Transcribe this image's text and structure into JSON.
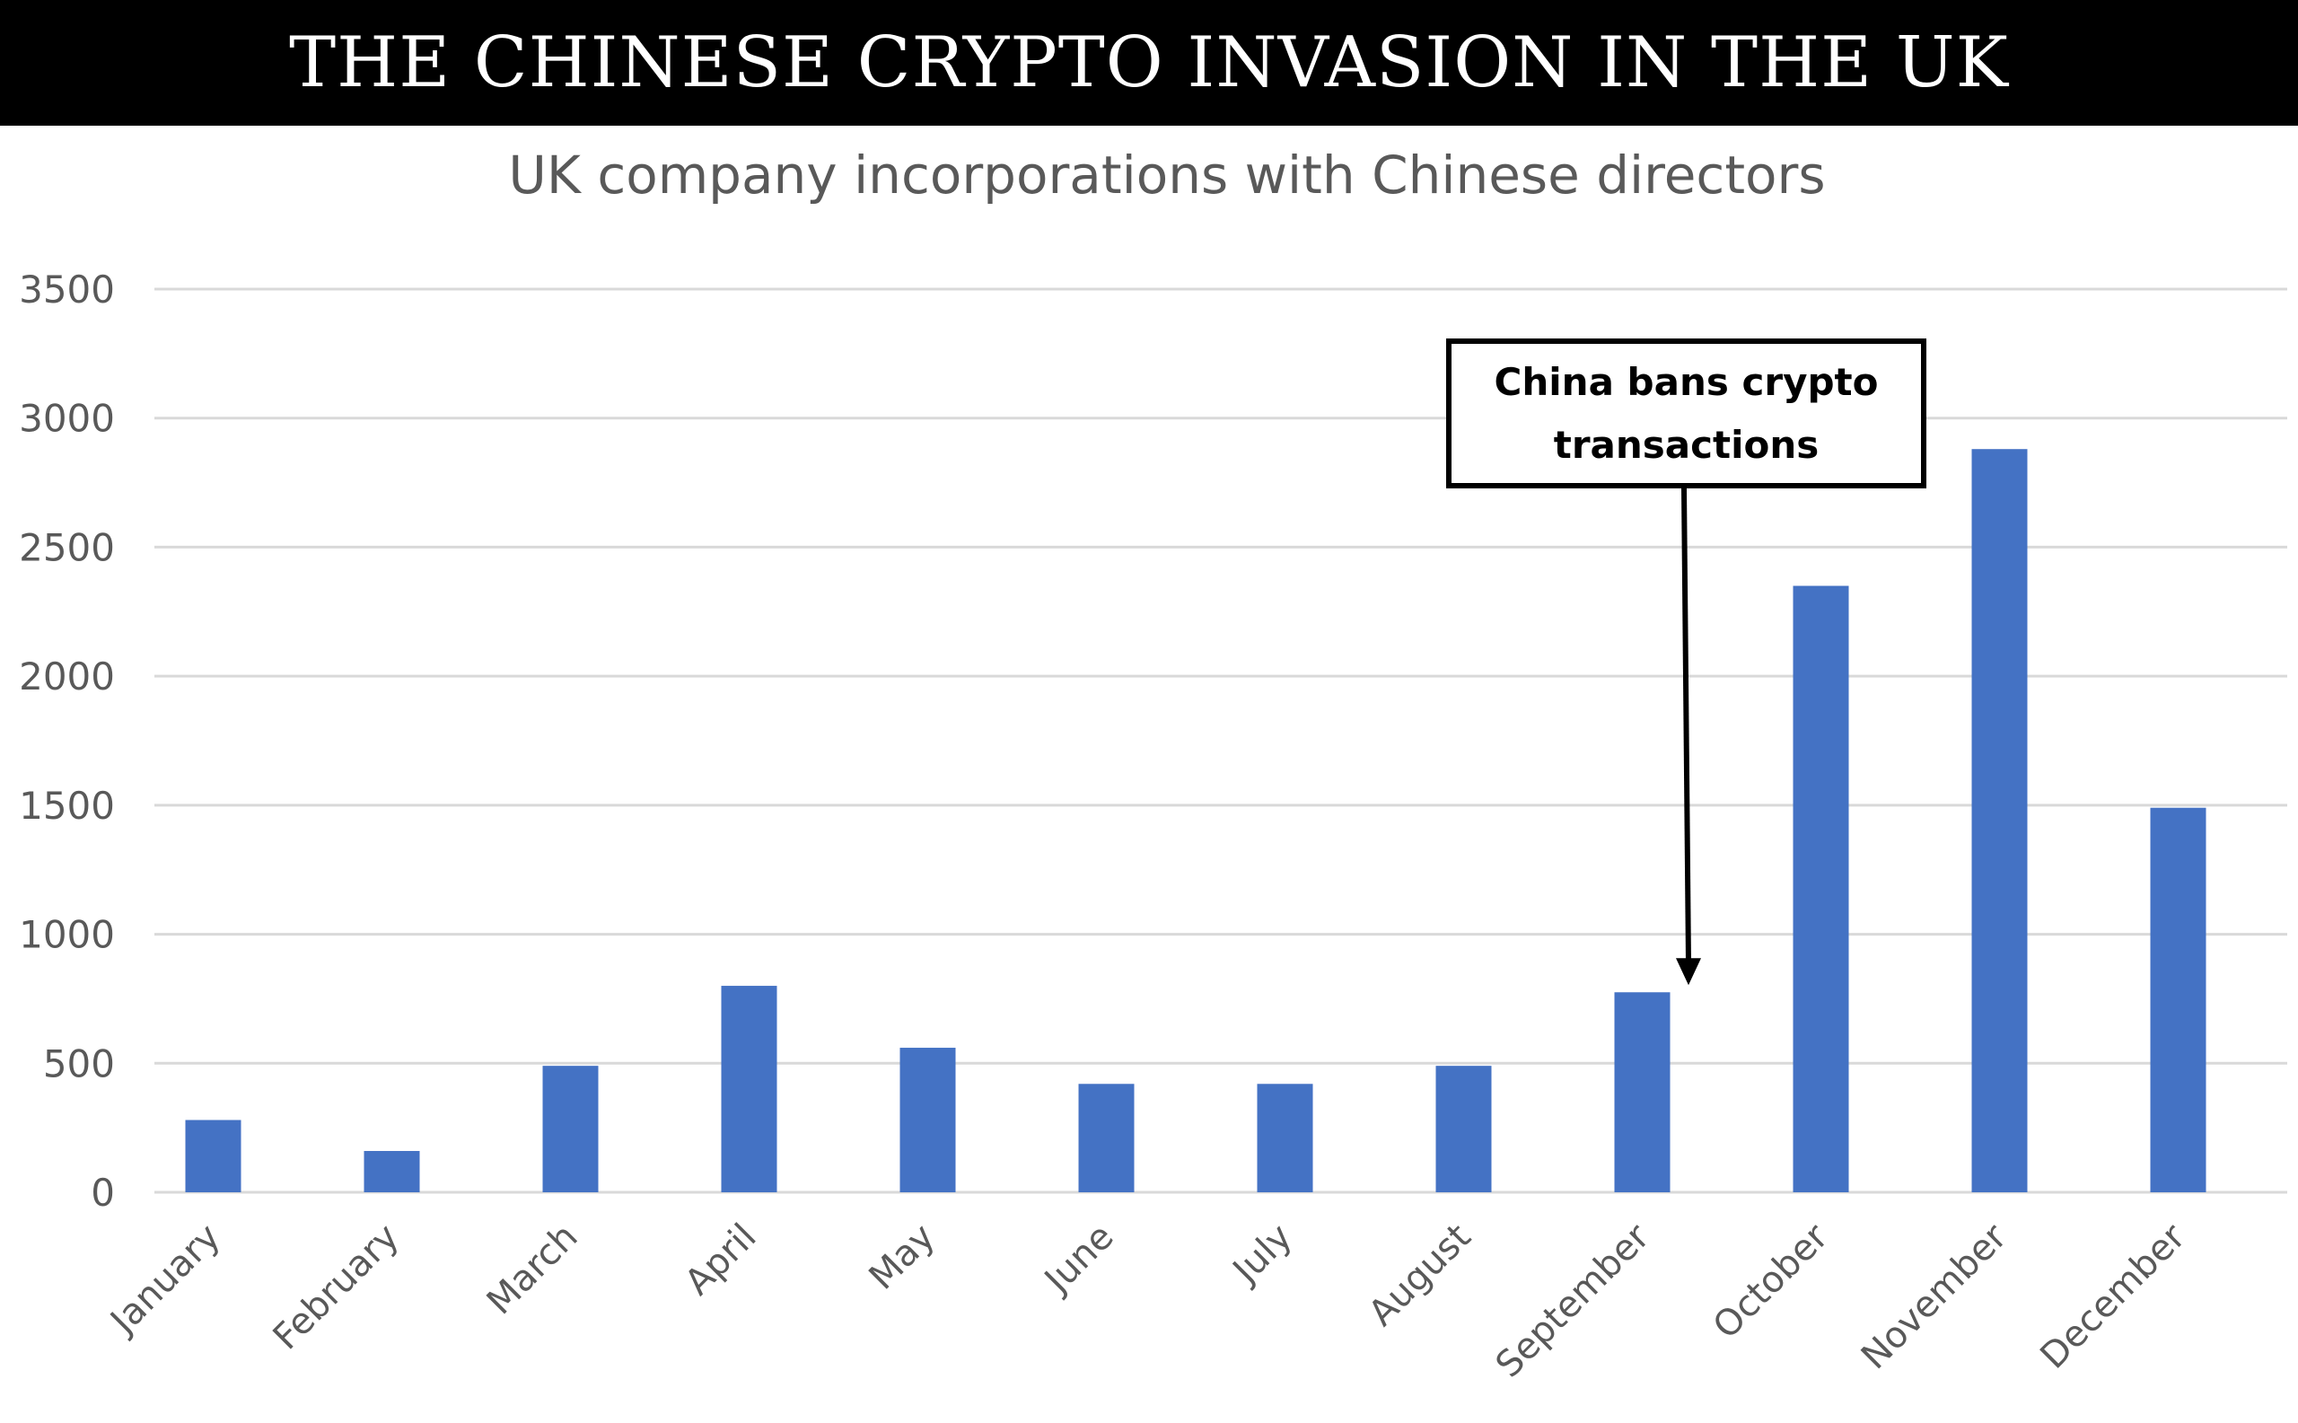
{
  "banner": {
    "title": "THE CHINESE CRYPTO INVASION IN THE UK"
  },
  "colors": {
    "bar": "#4472C4",
    "grid": "#d9d9d9",
    "axis_text": "#595959",
    "banner_bg": "#000000",
    "banner_text": "#ffffff"
  },
  "annotation": {
    "text": "China bans crypto transactions",
    "target_category": "September"
  },
  "chart_data": {
    "type": "bar",
    "title": "UK company incorporations with Chinese directors",
    "xlabel": "",
    "ylabel": "",
    "ylim": [
      0,
      3500
    ],
    "yticks": [
      0,
      500,
      1000,
      1500,
      2000,
      2500,
      3000,
      3500
    ],
    "grid": true,
    "categories": [
      "January",
      "February",
      "March",
      "April",
      "May",
      "June",
      "July",
      "August",
      "September",
      "October",
      "November",
      "December"
    ],
    "values": [
      280,
      160,
      490,
      800,
      560,
      420,
      420,
      490,
      775,
      2350,
      2880,
      1490
    ]
  }
}
